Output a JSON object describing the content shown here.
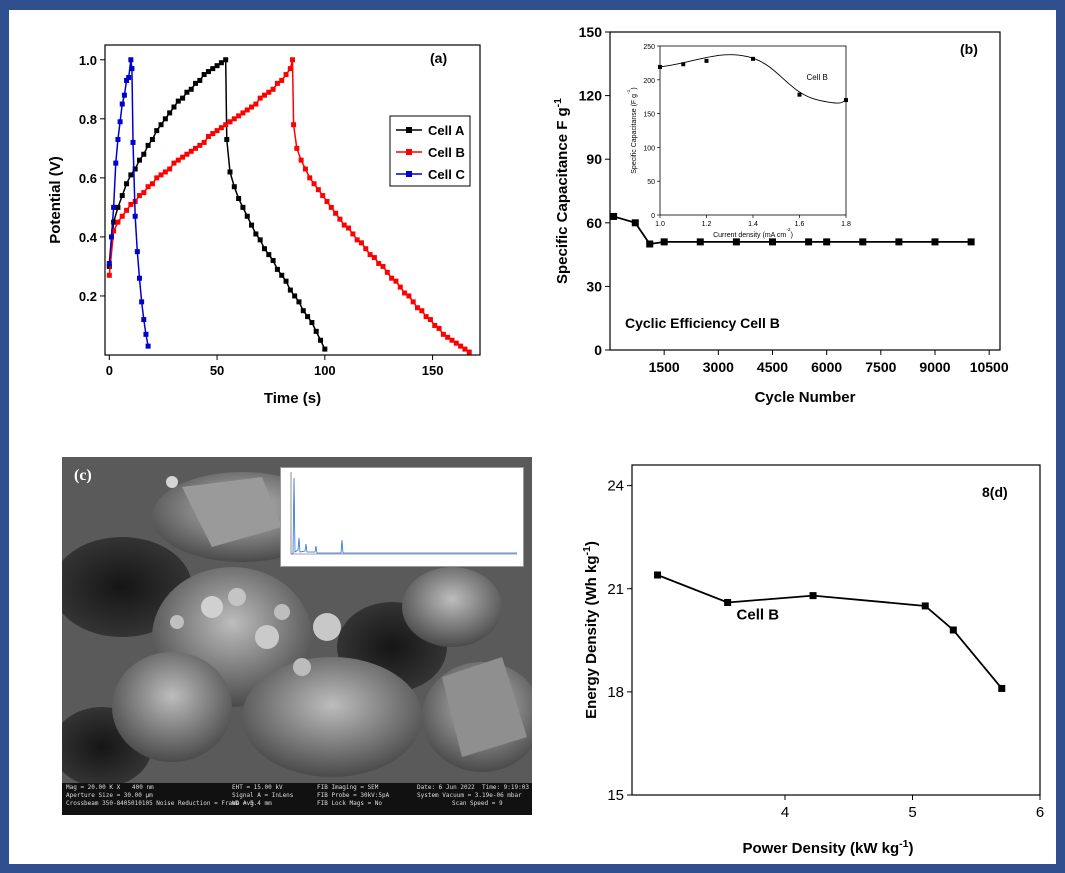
{
  "chart_data": [
    {
      "id": "a",
      "type": "line",
      "panel_label": "(a)",
      "xlabel": "Time (s)",
      "ylabel": "Potential (V)",
      "xlim": [
        -2,
        172
      ],
      "ylim": [
        0,
        1.05
      ],
      "xticks": [
        "0",
        "50",
        "100",
        "150"
      ],
      "yticks": [
        "0.2",
        "0.4",
        "0.6",
        "0.8",
        "1.0"
      ],
      "legend_position": "right",
      "series": [
        {
          "name": "Cell A",
          "color": "#000000",
          "marker": "square",
          "x": [
            0,
            2,
            4,
            6,
            8,
            10,
            12,
            14,
            16,
            18,
            20,
            22,
            24,
            26,
            28,
            30,
            32,
            34,
            36,
            38,
            40,
            42,
            44,
            46,
            48,
            50,
            52,
            54,
            54.5,
            56,
            58,
            60,
            62,
            64,
            66,
            68,
            70,
            72,
            74,
            76,
            78,
            80,
            82,
            84,
            86,
            88,
            90,
            92,
            94,
            96,
            98,
            100
          ],
          "y": [
            0.3,
            0.45,
            0.5,
            0.54,
            0.58,
            0.61,
            0.63,
            0.66,
            0.68,
            0.71,
            0.73,
            0.76,
            0.78,
            0.8,
            0.82,
            0.84,
            0.86,
            0.87,
            0.89,
            0.9,
            0.92,
            0.93,
            0.95,
            0.96,
            0.97,
            0.98,
            0.99,
            1.0,
            0.73,
            0.62,
            0.57,
            0.53,
            0.5,
            0.47,
            0.44,
            0.41,
            0.39,
            0.36,
            0.34,
            0.32,
            0.29,
            0.27,
            0.25,
            0.22,
            0.2,
            0.18,
            0.15,
            0.13,
            0.11,
            0.08,
            0.05,
            0.02
          ]
        },
        {
          "name": "Cell B",
          "color": "#ff0000",
          "marker": "square",
          "x": [
            0,
            2,
            4,
            6,
            8,
            10,
            12,
            14,
            16,
            18,
            20,
            22,
            24,
            26,
            28,
            30,
            32,
            34,
            36,
            38,
            40,
            42,
            44,
            46,
            48,
            50,
            52,
            54,
            56,
            58,
            60,
            62,
            64,
            66,
            68,
            70,
            72,
            74,
            76,
            78,
            80,
            82,
            84,
            85,
            85.5,
            87,
            89,
            91,
            93,
            95,
            97,
            99,
            101,
            103,
            105,
            107,
            109,
            111,
            113,
            115,
            117,
            119,
            121,
            123,
            125,
            127,
            129,
            131,
            133,
            135,
            137,
            139,
            141,
            143,
            145,
            147,
            149,
            151,
            153,
            155,
            157,
            159,
            161,
            163,
            165,
            167
          ],
          "y": [
            0.27,
            0.42,
            0.45,
            0.47,
            0.49,
            0.51,
            0.52,
            0.54,
            0.55,
            0.57,
            0.58,
            0.6,
            0.61,
            0.62,
            0.63,
            0.65,
            0.66,
            0.67,
            0.68,
            0.69,
            0.7,
            0.71,
            0.72,
            0.74,
            0.75,
            0.76,
            0.77,
            0.78,
            0.79,
            0.8,
            0.81,
            0.82,
            0.83,
            0.84,
            0.85,
            0.87,
            0.88,
            0.89,
            0.9,
            0.92,
            0.93,
            0.95,
            0.97,
            1.0,
            0.78,
            0.7,
            0.66,
            0.63,
            0.6,
            0.58,
            0.56,
            0.54,
            0.52,
            0.5,
            0.48,
            0.46,
            0.44,
            0.43,
            0.41,
            0.39,
            0.38,
            0.36,
            0.34,
            0.33,
            0.31,
            0.3,
            0.28,
            0.26,
            0.25,
            0.23,
            0.21,
            0.2,
            0.18,
            0.16,
            0.15,
            0.13,
            0.12,
            0.1,
            0.09,
            0.07,
            0.06,
            0.05,
            0.04,
            0.03,
            0.02,
            0.01
          ]
        },
        {
          "name": "Cell C",
          "color": "#0000cc",
          "marker": "square",
          "x": [
            0,
            1,
            2,
            3,
            4,
            5,
            6,
            7,
            8,
            9,
            10,
            10.5,
            11,
            12,
            13,
            14,
            15,
            16,
            17,
            18
          ],
          "y": [
            0.31,
            0.4,
            0.5,
            0.65,
            0.73,
            0.79,
            0.85,
            0.88,
            0.93,
            0.94,
            1.0,
            0.97,
            0.72,
            0.47,
            0.35,
            0.26,
            0.18,
            0.12,
            0.07,
            0.03
          ]
        }
      ]
    },
    {
      "id": "b",
      "type": "line",
      "panel_label": "(b)",
      "xlabel": "Cycle Number",
      "ylabel": "Specific Capacitance F g",
      "ylabel_sup": "-1",
      "xlim": [
        0,
        10800
      ],
      "ylim": [
        0,
        150
      ],
      "xticks": [
        1500,
        3000,
        4500,
        6000,
        7500,
        9000,
        10500
      ],
      "yticks": [
        0,
        30,
        60,
        90,
        120,
        150
      ],
      "annotation": "Cyclic Efficiency Cell B",
      "series": [
        {
          "color": "#000000",
          "marker": "square",
          "x": [
            100,
            700,
            1100,
            1500,
            2500,
            3500,
            4500,
            5500,
            6000,
            7000,
            8000,
            9000,
            10000
          ],
          "y": [
            63,
            60,
            50,
            51,
            51,
            51,
            51,
            51,
            51,
            51,
            51,
            51,
            51
          ]
        }
      ],
      "inset": {
        "type": "line",
        "xlabel": "Current density (mA cm",
        "xlabel_sup": "-2",
        "xlabel_end": ")",
        "ylabel": "Specific Capacitanse (F g",
        "ylabel_sup": "-1",
        "ylabel_end": ")",
        "xlim": [
          1.0,
          1.8
        ],
        "ylim": [
          0,
          250
        ],
        "xticks": [
          "1.0",
          "1.2",
          "1.4",
          "1.6",
          "1.8"
        ],
        "yticks": [
          "0",
          "50",
          "100",
          "150",
          "200",
          "250"
        ],
        "annotation": "Cell B",
        "series": [
          {
            "color": "#000000",
            "marker": "square",
            "x": [
              1.0,
              1.1,
              1.2,
              1.4,
              1.6,
              1.8
            ],
            "y": [
              219,
              223,
              228,
              231,
              178,
              170
            ]
          }
        ]
      }
    },
    {
      "id": "d",
      "type": "line",
      "panel_label": "8(d)",
      "xlabel": "Power Density (kW kg",
      "xlabel_sup": "-1",
      "xlabel_end": ")",
      "ylabel": "Energy Density (Wh kg",
      "ylabel_sup": "-1",
      "ylabel_end": ")",
      "xlim": [
        2.8,
        6.0
      ],
      "ylim": [
        15,
        24.6
      ],
      "xticks": [
        4,
        5,
        6
      ],
      "yticks": [
        15,
        18,
        21,
        24
      ],
      "annotation": "Cell B",
      "series": [
        {
          "color": "#000000",
          "marker": "square",
          "x": [
            3.0,
            3.55,
            4.22,
            5.1,
            5.32,
            5.7
          ],
          "y": [
            21.4,
            20.6,
            20.8,
            20.5,
            19.8,
            18.1
          ]
        }
      ]
    }
  ],
  "sem_panel": {
    "label": "(c)",
    "info_bar": {
      "mag": "Mag = 20.00 K X",
      "scale": "400 nm",
      "aperture": "Aperture Size = 30.00 µm",
      "instrument": "Crossbeam 350-8405010105 Noise Reduction = Frame Avg",
      "eht": "EHT = 15.00 kV",
      "signal": "Signal A = InLens",
      "wd": "WD = 5.4 mm",
      "fib_imaging": "FIB Imaging = SEM",
      "fib_probe": "FIB Probe = 30kV:5pA",
      "fib_lock": "FIB Lock Mags = No",
      "date": "Date: 6 Jun 2022",
      "time": "Time: 9:19:03",
      "vacuum": "System Vacuum = 3.19e-06 mbar",
      "scan": "Scan Speed = 9"
    }
  }
}
